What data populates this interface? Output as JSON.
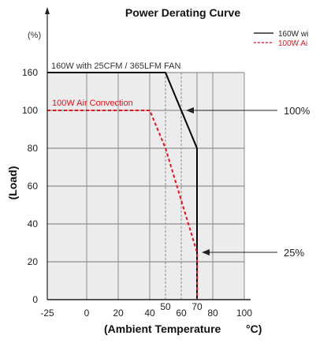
{
  "chart_data": {
    "type": "line",
    "title": "Power Derating Curve",
    "xlabel": "(Ambient Temperature",
    "xlabel_unit": "°C)",
    "ylabel": "(Load)",
    "yunit": "(%)",
    "xlim": [
      -25,
      100
    ],
    "ylim": [
      0,
      160
    ],
    "x_ticks": [
      {
        "value": -25,
        "label": "-25"
      },
      {
        "value": 0,
        "label": "0"
      },
      {
        "value": 20,
        "label": "20"
      },
      {
        "value": 40,
        "label": "40"
      },
      {
        "value": 50,
        "label": "50"
      },
      {
        "value": 60,
        "label": "60"
      },
      {
        "value": 70,
        "label": "70"
      },
      {
        "value": 80,
        "label": "80"
      },
      {
        "value": 100,
        "label": "100"
      }
    ],
    "y_ticks": [
      {
        "value": 0,
        "label": "0"
      },
      {
        "value": 20,
        "label": "20"
      },
      {
        "value": 40,
        "label": "40"
      },
      {
        "value": 60,
        "label": "60"
      },
      {
        "value": 80,
        "label": "80"
      },
      {
        "value": 100,
        "label": "100"
      },
      {
        "value": 160,
        "label": "160"
      }
    ],
    "grid": true,
    "legend_position": "top-right",
    "series": [
      {
        "name": "160W with 25CFM / 365LFM FAN",
        "legend_label": "160W wi",
        "color": "#000000",
        "line_style": "solid",
        "points": [
          [
            -25,
            160
          ],
          [
            50,
            160
          ],
          [
            70,
            80
          ],
          [
            70,
            0
          ]
        ]
      },
      {
        "name": "100W Air Convection",
        "legend_label": "100W Ai",
        "color": "#e8101a",
        "line_style": "dashed",
        "points": [
          [
            -25,
            100
          ],
          [
            40,
            100
          ],
          [
            50,
            80
          ],
          [
            70,
            25
          ],
          [
            70,
            0
          ]
        ]
      }
    ],
    "annotations": [
      {
        "text": "100%",
        "arrow_to": [
          60,
          100
        ]
      },
      {
        "text": "25%",
        "arrow_to": [
          70,
          25
        ]
      }
    ],
    "reference_lines_x": [
      40,
      50,
      60
    ]
  }
}
